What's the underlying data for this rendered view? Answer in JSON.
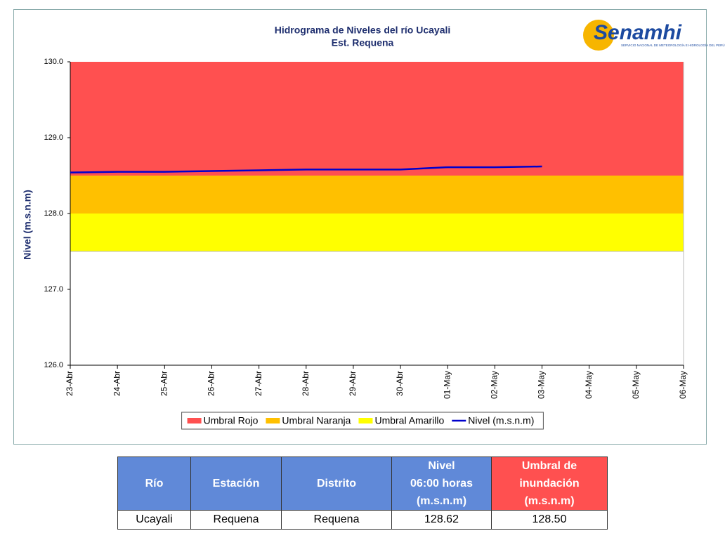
{
  "chart_data": {
    "type": "line",
    "title": "Hidrograma de Niveles del río Ucayali",
    "subtitle": "Est. Requena",
    "y_label": "Nivel (m.s.n.m)",
    "categories": [
      "23-Abr",
      "24-Abr",
      "25-Abr",
      "26-Abr",
      "27-Abr",
      "28-Abr",
      "29-Abr",
      "30-Abr",
      "01-May",
      "02-May",
      "03-May",
      "04-May",
      "05-May",
      "06-May"
    ],
    "thresholds": [
      {
        "name": "Umbral Rojo",
        "color": "#ff5050",
        "from": 128.5
      },
      {
        "name": "Umbral Naranja",
        "color": "#ffc000",
        "from": 128.0
      },
      {
        "name": "Umbral Amarillo",
        "color": "#ffff00",
        "from": 127.5
      }
    ],
    "series": [
      {
        "name": "Nivel (m.s.n.m)",
        "color": "#0000cc",
        "values": [
          128.54,
          128.55,
          128.55,
          128.56,
          128.57,
          128.58,
          128.58,
          128.58,
          128.61,
          128.61,
          128.62,
          null,
          null,
          null
        ]
      }
    ],
    "ylim": [
      126,
      130
    ],
    "yticks": [
      {
        "value": 126,
        "label": "126.0"
      },
      {
        "value": 127,
        "label": "127.0"
      },
      {
        "value": 128,
        "label": "128.0"
      },
      {
        "value": 129,
        "label": "129.0"
      },
      {
        "value": 130,
        "label": "130.0"
      }
    ],
    "legend": "bottom"
  },
  "logo": {
    "name": "Senamhi",
    "tagline": "SERVICIO NACIONAL DE METEOROLOGÍA E HIDROLOGÍA DEL PERÚ"
  },
  "table": {
    "headers": [
      "Río",
      "Estación",
      "Distrito",
      "Nivel\n06:00 horas\n(m.s.n.m)",
      "Umbral de\ninundación\n(m.s.n.m)"
    ],
    "rows": [
      [
        "Ucayali",
        "Requena",
        "Requena",
        "128.62",
        "128.50"
      ]
    ]
  }
}
